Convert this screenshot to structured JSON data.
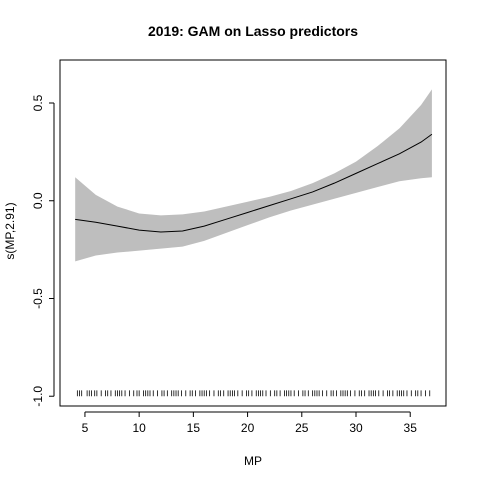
{
  "chart_data": {
    "type": "line",
    "title": "2019: GAM on Lasso predictors",
    "xlabel": "MP",
    "ylabel": "s(MP,2.91)",
    "xlim": [
      2.7,
      38.3
    ],
    "ylim": [
      -1.05,
      0.72
    ],
    "x_ticks": [
      5,
      10,
      15,
      20,
      25,
      30,
      35
    ],
    "x_tick_labels": [
      "5",
      "10",
      "15",
      "20",
      "25",
      "30",
      "35"
    ],
    "y_ticks": [
      -1.0,
      -0.5,
      0.0,
      0.5
    ],
    "y_tick_labels": [
      "-1.0",
      "-0.5",
      "0.0",
      "0.5"
    ],
    "grid": false,
    "colors": {
      "band": "#bebebe",
      "line": "#000000",
      "rug": "#000000",
      "frame": "#000000"
    },
    "series": [
      {
        "x": [
          4.1,
          6,
          8,
          10,
          12,
          14,
          16,
          18,
          20,
          22,
          24,
          26,
          28,
          30,
          32,
          34,
          36,
          37
        ],
        "fit": [
          -0.095,
          -0.11,
          -0.13,
          -0.15,
          -0.16,
          -0.155,
          -0.13,
          -0.095,
          -0.06,
          -0.025,
          0.01,
          0.045,
          0.09,
          0.14,
          0.19,
          0.24,
          0.3,
          0.34
        ],
        "upper": [
          0.12,
          0.03,
          -0.03,
          -0.065,
          -0.075,
          -0.07,
          -0.055,
          -0.03,
          -0.005,
          0.02,
          0.05,
          0.09,
          0.14,
          0.2,
          0.28,
          0.37,
          0.49,
          0.57
        ],
        "lower": [
          -0.31,
          -0.28,
          -0.265,
          -0.255,
          -0.245,
          -0.235,
          -0.205,
          -0.165,
          -0.125,
          -0.085,
          -0.05,
          -0.02,
          0.01,
          0.04,
          0.07,
          0.1,
          0.115,
          0.12
        ]
      }
    ],
    "rug_x": [
      4.3,
      4.7,
      5.2,
      5.6,
      6.1,
      6.5,
      6.9,
      7.4,
      7.8,
      8.2,
      8.7,
      9.1,
      9.5,
      10.0,
      10.4,
      10.8,
      11.3,
      11.7,
      12.1,
      12.6,
      13.0,
      13.4,
      13.9,
      14.3,
      14.7,
      15.2,
      15.6,
      16.0,
      16.5,
      16.9,
      17.3,
      17.8,
      18.2,
      18.6,
      19.1,
      19.5,
      19.9,
      20.4,
      20.8,
      21.2,
      21.7,
      22.1,
      22.5,
      23.0,
      23.4,
      23.8,
      24.3,
      24.7,
      25.1,
      25.6,
      26.0,
      26.4,
      26.9,
      27.3,
      27.7,
      28.2,
      28.6,
      29.0,
      29.5,
      29.9,
      30.3,
      30.8,
      31.2,
      31.6,
      32.1,
      32.5,
      32.9,
      33.4,
      33.8,
      34.2,
      34.7,
      35.1,
      35.5,
      36.0,
      36.4,
      36.8,
      4.5,
      5.9,
      7.1,
      8.4,
      9.8,
      11.0,
      12.3,
      13.6,
      14.9,
      16.2,
      17.5,
      18.8,
      20.1,
      21.4,
      22.7,
      24.0,
      25.3,
      26.6,
      27.9,
      29.2,
      30.5,
      31.8,
      33.1,
      34.4,
      35.7,
      5.4,
      8.0,
      10.6,
      13.2,
      15.8,
      18.4,
      21.0,
      23.6,
      26.2,
      28.8,
      31.4,
      34.0
    ]
  }
}
